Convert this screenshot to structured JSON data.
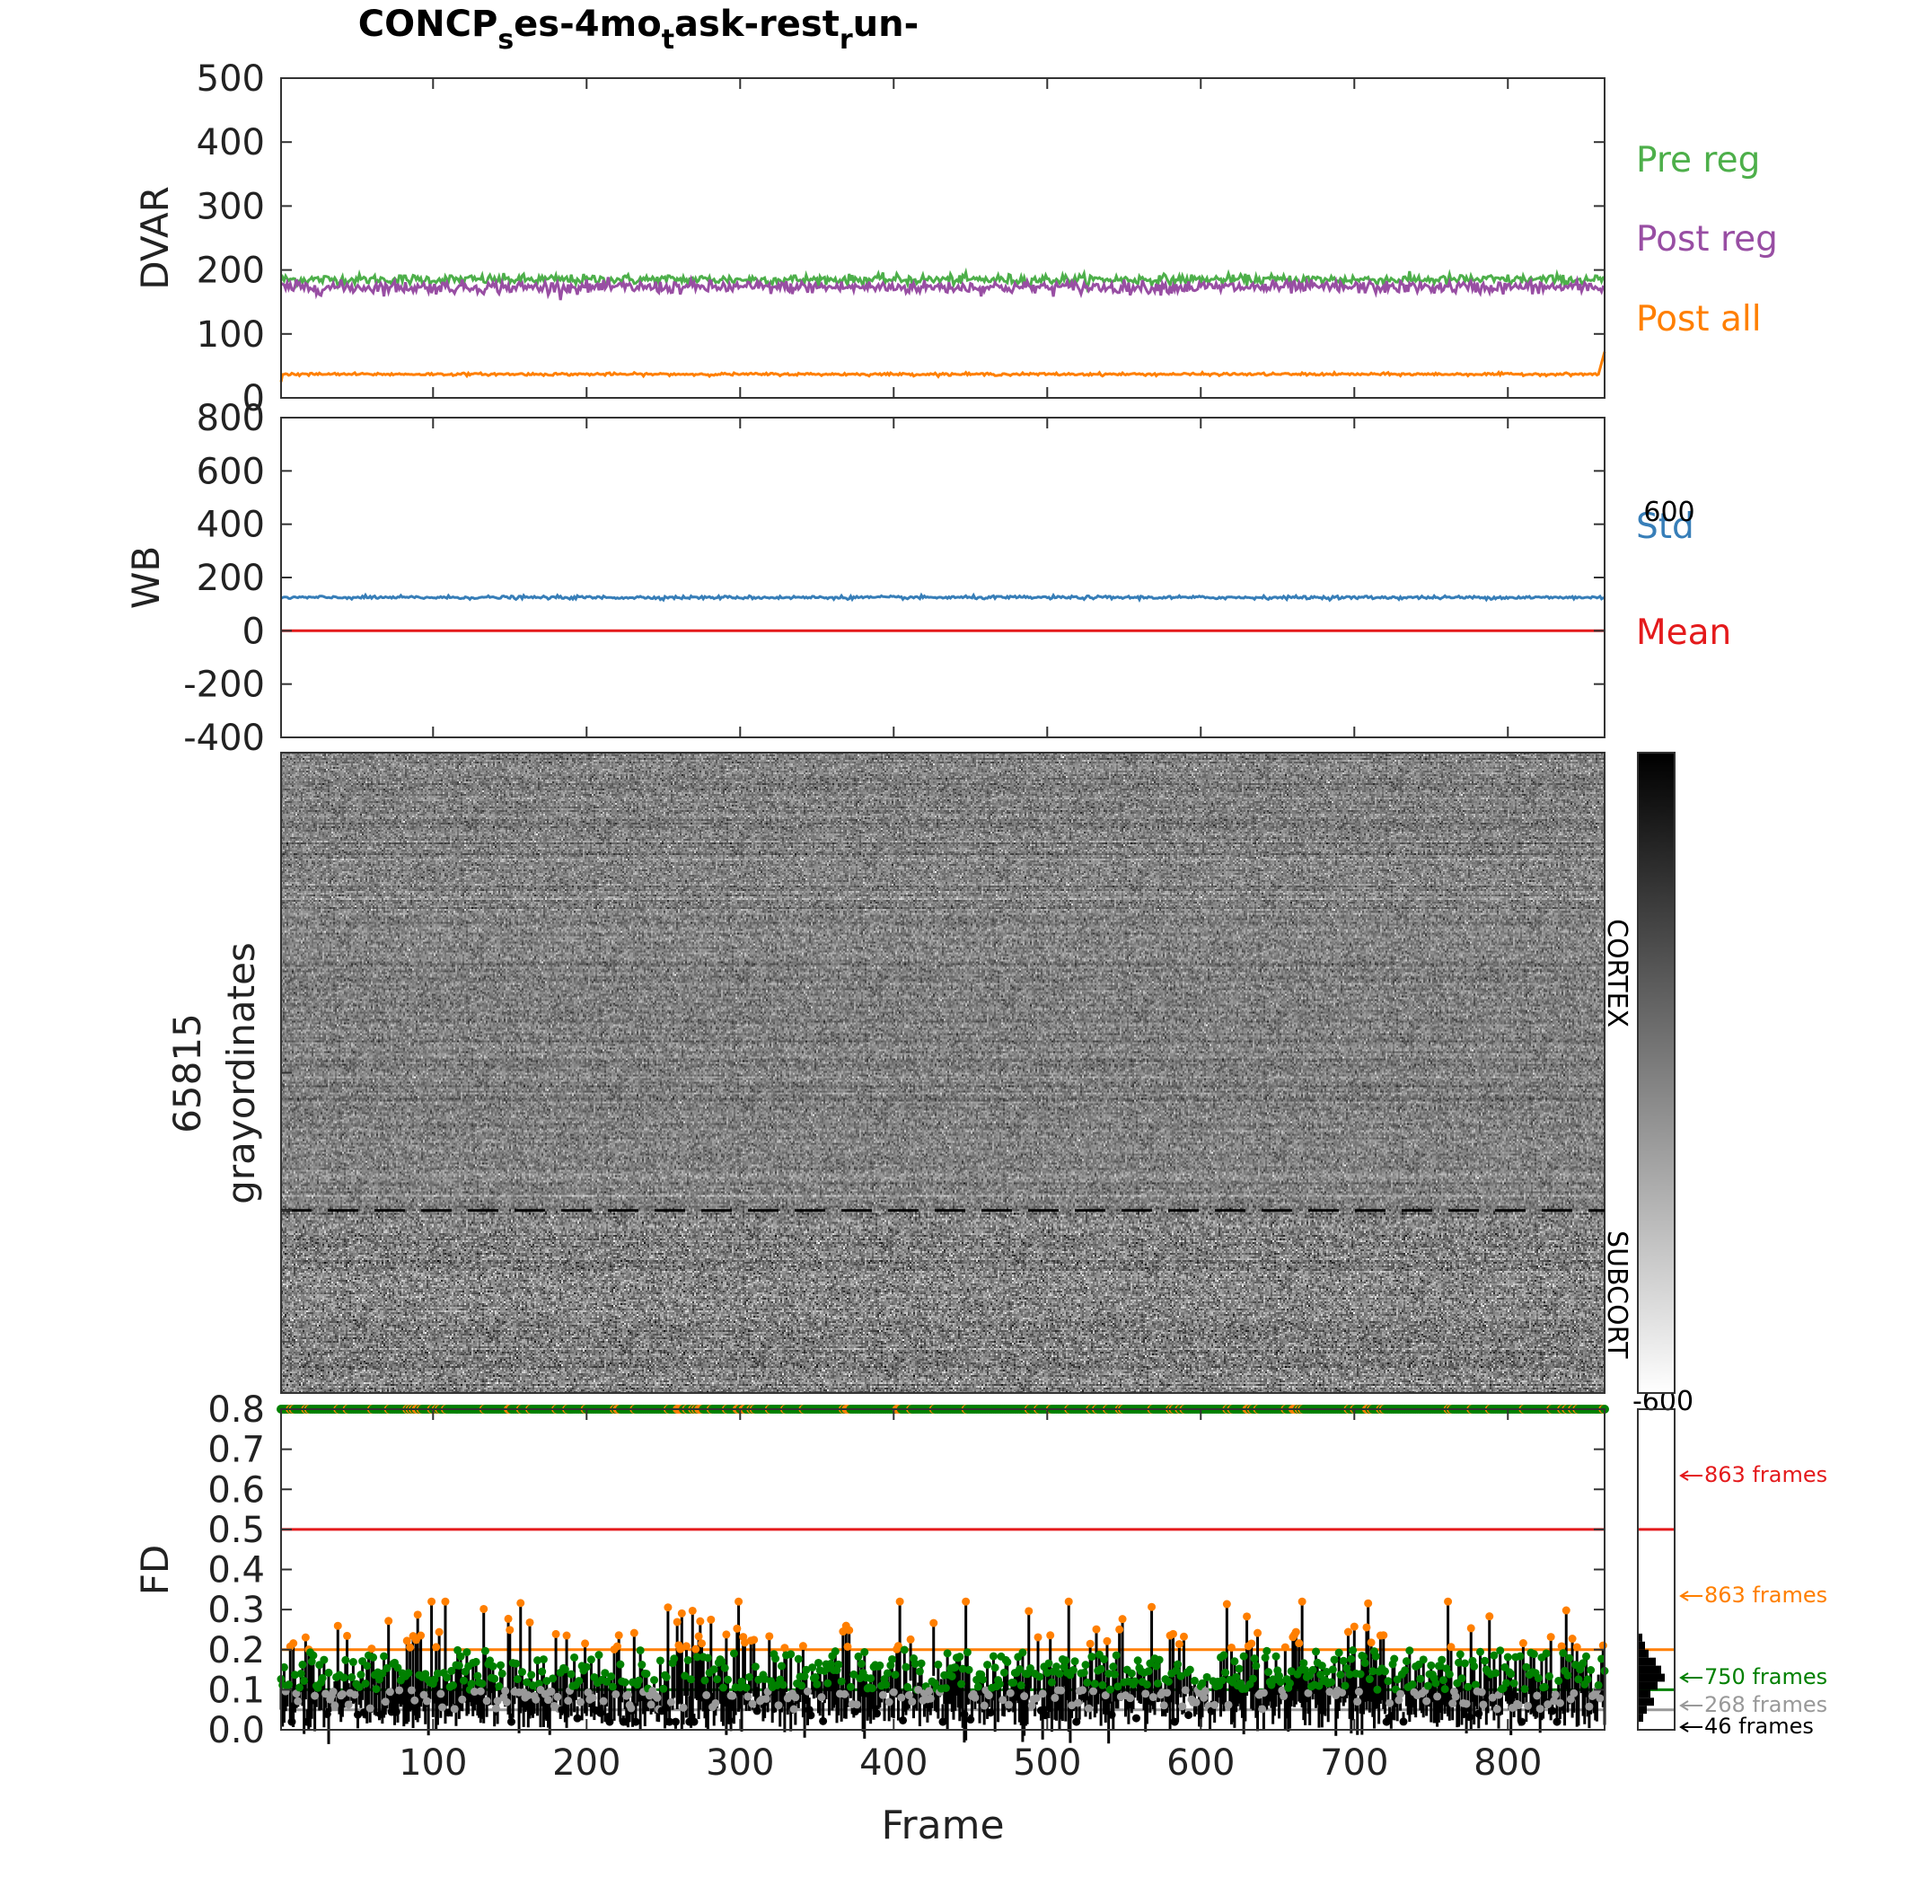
{
  "title": {
    "base": "CONCP",
    "sub1": "s",
    "part2": "es-4mo",
    "sub2": "t",
    "part3": "ask-rest",
    "sub3": "r",
    "part4": "un-"
  },
  "colors": {
    "pre_reg": "#4daf4a",
    "post_reg": "#984ea3",
    "post_all": "#ff7f00",
    "std": "#377eb8",
    "mean": "#e41a1c",
    "fd_red": "#e41a1c",
    "fd_orange": "#ff7f00",
    "fd_green": "#008000",
    "fd_gray": "#999999",
    "fd_black": "#000000"
  },
  "chart_data": [
    {
      "type": "line",
      "name": "dvar-panel",
      "ylabel": "DVAR",
      "ylim": [
        0,
        500
      ],
      "yticks": [
        "500",
        "400",
        "300",
        "200",
        "100",
        "0"
      ],
      "xlim": [
        1,
        863
      ],
      "series": [
        {
          "name": "Pre reg",
          "mean": 185,
          "noise": 4
        },
        {
          "name": "Post reg",
          "mean": 173,
          "noise": 5
        },
        {
          "name": "Post all",
          "mean": 37,
          "noise": 1,
          "start": 25,
          "end": 72
        }
      ]
    },
    {
      "type": "line",
      "name": "wb-panel",
      "ylabel": "WB",
      "ylim": [
        -400,
        800
      ],
      "yticks": [
        "800",
        "600",
        "400",
        "200",
        "0",
        "-200",
        "-400"
      ],
      "xlim": [
        1,
        863
      ],
      "series": [
        {
          "name": "Std",
          "mean": 125,
          "noise": 3
        },
        {
          "name": "Mean",
          "mean": 0,
          "noise": 0
        }
      ]
    },
    {
      "type": "heatmap",
      "name": "grayordinate-panel",
      "ylabel_line1": "65815",
      "ylabel_line2": "grayordinates",
      "region_labels": [
        "CORTEX",
        "SUBCORT"
      ],
      "cortex_fraction": 0.715,
      "colorbar": {
        "max": "600",
        "min": "-600"
      }
    },
    {
      "type": "scatter",
      "name": "fd-panel",
      "ylabel": "FD",
      "xlabel": "Frame",
      "ylim": [
        0,
        0.8
      ],
      "yticks": [
        "0.8",
        "0.7",
        "0.6",
        "0.5",
        "0.4",
        "0.3",
        "0.2",
        "0.1",
        "0.0"
      ],
      "xlim": [
        1,
        863
      ],
      "xticks": [
        "100",
        "200",
        "300",
        "400",
        "500",
        "600",
        "700",
        "800"
      ],
      "thresholds": [
        {
          "name": "red",
          "value": 0.5
        },
        {
          "name": "orange",
          "value": 0.2
        },
        {
          "name": "green",
          "value": 0.1
        },
        {
          "name": "gray",
          "value": 0.05
        }
      ],
      "frame_counts": [
        {
          "label": "863 frames",
          "color": "#e41a1c"
        },
        {
          "label": "863 frames",
          "color": "#ff7f00"
        },
        {
          "label": "750 frames",
          "color": "#008000"
        },
        {
          "label": "268 frames",
          "color": "#999999"
        },
        {
          "label": "46 frames",
          "color": "#000000"
        }
      ]
    }
  ]
}
